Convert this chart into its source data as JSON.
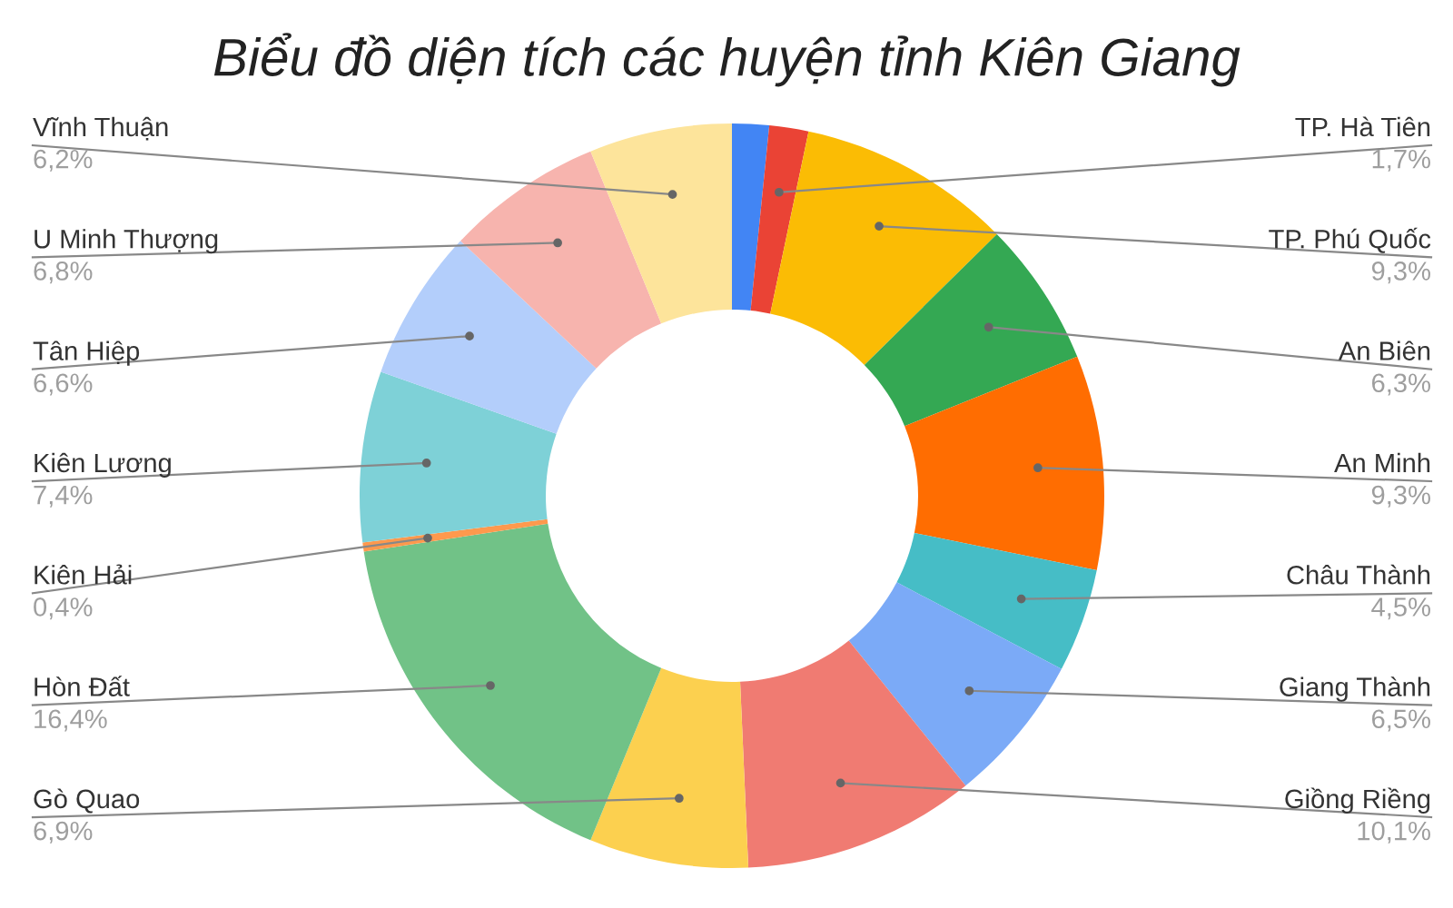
{
  "chart_data": {
    "type": "donut",
    "title": "Biểu đồ diện tích các huyện tỉnh Kiên Giang",
    "categories": [
      null,
      "TP. Hà Tiên",
      "TP. Phú Quốc",
      "An Biên",
      "An Minh",
      "Châu Thành",
      "Giang Thành",
      "Giồng Riềng",
      "Gò Quao",
      "Hòn Đất",
      "Kiên Hải",
      "Kiên Lương",
      "Tân Hiệp",
      "U Minh Thượng",
      "Vĩnh Thuận"
    ],
    "values": [
      1.6,
      1.7,
      9.3,
      6.3,
      9.3,
      4.5,
      6.5,
      10.1,
      6.9,
      16.4,
      0.4,
      7.4,
      6.6,
      6.8,
      6.2
    ],
    "value_labels": [
      null,
      "1,7%",
      "9,3%",
      "6,3%",
      "9,3%",
      "4,5%",
      "6,5%",
      "10,1%",
      "6,9%",
      "16,4%",
      "0,4%",
      "7,4%",
      "6,6%",
      "6,8%",
      "6,2%"
    ],
    "colors": [
      "#4285f4",
      "#ea4335",
      "#fbbc04",
      "#34a853",
      "#ff6d01",
      "#46bdc6",
      "#7baaf7",
      "#f07b72",
      "#fcd04f",
      "#71c287",
      "#ff994d",
      "#7ed1d7",
      "#b3cefb",
      "#f7b4ae",
      "#fde49b"
    ],
    "legend": false
  }
}
